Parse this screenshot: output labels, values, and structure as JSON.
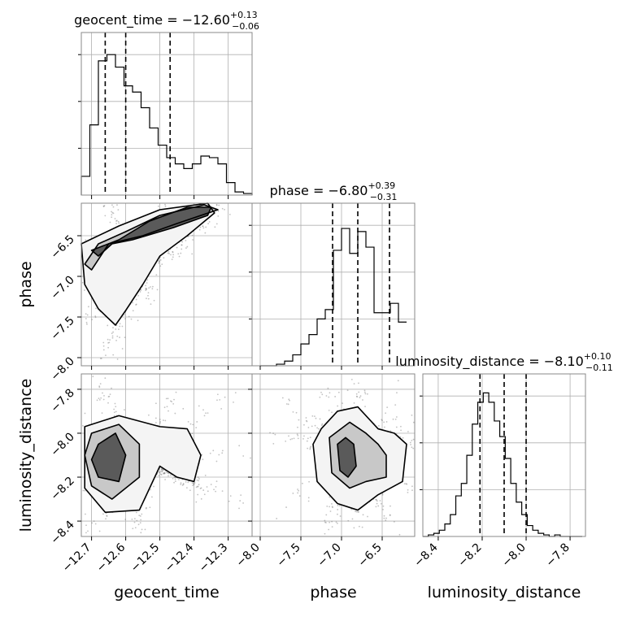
{
  "chart_data": {
    "type": "corner",
    "grid": true,
    "parameters": [
      {
        "name": "geocent_time",
        "xlabel": "geocent_time",
        "ticks": [
          -12.7,
          -12.6,
          -12.5,
          -12.4,
          -12.3
        ],
        "tick_labels": [
          "−12.7",
          "−12.6",
          "−12.5",
          "−12.4",
          "−12.3"
        ],
        "range": [
          -12.73,
          -12.23
        ]
      },
      {
        "name": "phase",
        "xlabel": "phase",
        "ylabel": "phase",
        "ticks": [
          -8.0,
          -7.5,
          -7.0,
          -6.5
        ],
        "tick_labels": [
          "−8.0",
          "−7.5",
          "−7.0",
          "−6.5"
        ],
        "range": [
          -8.1,
          -6.1
        ]
      },
      {
        "name": "luminosity_distance",
        "xlabel": "luminosity_distance",
        "ylabel": "luminosity_distance",
        "ticks": [
          -8.4,
          -8.2,
          -8.0,
          -7.8
        ],
        "tick_labels": [
          "−8.4",
          "−8.2",
          "−8.0",
          "−7.8"
        ],
        "range": [
          -8.47,
          -7.73
        ]
      }
    ],
    "marginals": [
      {
        "param": "geocent_time",
        "title_main": "geocent_time = −12.60",
        "title_sup": "+0.13",
        "title_sub": "−0.06",
        "quantiles": [
          -12.66,
          -12.6,
          -12.47
        ],
        "bin_start": -12.73,
        "bin_width": 0.025,
        "counts": [
          0.12,
          0.45,
          0.86,
          0.9,
          0.82,
          0.7,
          0.66,
          0.56,
          0.43,
          0.32,
          0.24,
          0.2,
          0.17,
          0.2,
          0.25,
          0.24,
          0.2,
          0.08,
          0.02,
          0.01,
          0.0
        ]
      },
      {
        "param": "phase",
        "title_main": "phase = −6.80",
        "title_sup": "+0.39",
        "title_sub": "−0.31",
        "quantiles": [
          -7.11,
          -6.8,
          -6.41
        ],
        "bin_start": -8.0,
        "bin_width": 0.1,
        "counts": [
          0.0,
          0.0,
          0.01,
          0.03,
          0.07,
          0.14,
          0.2,
          0.3,
          0.36,
          0.74,
          0.88,
          0.72,
          0.86,
          0.76,
          0.34,
          0.34,
          0.4,
          0.28
        ]
      },
      {
        "param": "luminosity_distance",
        "title_main": "luminosity_distance = −8.10",
        "title_sup": "+0.10",
        "title_sub": "−0.11",
        "quantiles": [
          -8.21,
          -8.1,
          -8.0
        ],
        "bin_start": -8.47,
        "bin_width": 0.025,
        "counts": [
          0.0,
          0.01,
          0.02,
          0.04,
          0.08,
          0.14,
          0.26,
          0.34,
          0.52,
          0.72,
          0.86,
          0.92,
          0.86,
          0.74,
          0.64,
          0.5,
          0.34,
          0.22,
          0.14,
          0.07,
          0.04,
          0.02,
          0.01,
          0.0,
          0.01,
          0.0,
          0.0,
          0.0,
          0.0
        ]
      }
    ],
    "contours": [
      {
        "x": "geocent_time",
        "y": "phase",
        "levels": [
          [
            [
              -12.68,
              -6.75
            ],
            [
              -12.64,
              -6.6
            ],
            [
              -12.58,
              -6.55
            ],
            [
              -12.46,
              -6.4
            ],
            [
              -12.36,
              -6.25
            ],
            [
              -12.35,
              -6.15
            ],
            [
              -12.42,
              -6.15
            ],
            [
              -12.53,
              -6.32
            ],
            [
              -12.62,
              -6.55
            ],
            [
              -12.7,
              -6.68
            ]
          ],
          [
            [
              -12.7,
              -6.92
            ],
            [
              -12.65,
              -6.6
            ],
            [
              -12.55,
              -6.5
            ],
            [
              -12.45,
              -6.35
            ],
            [
              -12.33,
              -6.18
            ],
            [
              -12.37,
              -6.12
            ],
            [
              -12.5,
              -6.25
            ],
            [
              -12.6,
              -6.45
            ],
            [
              -12.68,
              -6.6
            ],
            [
              -12.72,
              -6.85
            ]
          ],
          [
            [
              -12.72,
              -7.1
            ],
            [
              -12.68,
              -7.4
            ],
            [
              -12.63,
              -7.6
            ],
            [
              -12.6,
              -7.42
            ],
            [
              -12.55,
              -7.1
            ],
            [
              -12.5,
              -6.75
            ],
            [
              -12.42,
              -6.5
            ],
            [
              -12.34,
              -6.22
            ],
            [
              -12.36,
              -6.1
            ],
            [
              -12.5,
              -6.18
            ],
            [
              -12.62,
              -6.38
            ],
            [
              -12.73,
              -6.6
            ]
          ]
        ]
      },
      {
        "x": "geocent_time",
        "y": "luminosity_distance",
        "levels": [
          [
            [
              -12.68,
              -8.05
            ],
            [
              -12.63,
              -8.0
            ],
            [
              -12.6,
              -8.1
            ],
            [
              -12.62,
              -8.22
            ],
            [
              -12.68,
              -8.2
            ],
            [
              -12.7,
              -8.12
            ]
          ],
          [
            [
              -12.7,
              -8.0
            ],
            [
              -12.62,
              -7.96
            ],
            [
              -12.56,
              -8.05
            ],
            [
              -12.56,
              -8.2
            ],
            [
              -12.64,
              -8.3
            ],
            [
              -12.7,
              -8.24
            ],
            [
              -12.72,
              -8.1
            ]
          ],
          [
            [
              -12.72,
              -7.97
            ],
            [
              -12.62,
              -7.92
            ],
            [
              -12.5,
              -7.97
            ],
            [
              -12.42,
              -7.98
            ],
            [
              -12.38,
              -8.1
            ],
            [
              -12.4,
              -8.22
            ],
            [
              -12.45,
              -8.2
            ],
            [
              -12.5,
              -8.15
            ],
            [
              -12.56,
              -8.35
            ],
            [
              -12.66,
              -8.36
            ],
            [
              -12.72,
              -8.25
            ]
          ]
        ]
      },
      {
        "x": "phase",
        "y": "luminosity_distance",
        "levels": [
          [
            [
              -7.05,
              -8.05
            ],
            [
              -6.95,
              -8.02
            ],
            [
              -6.85,
              -8.05
            ],
            [
              -6.82,
              -8.15
            ],
            [
              -6.92,
              -8.2
            ],
            [
              -7.02,
              -8.17
            ]
          ],
          [
            [
              -7.15,
              -8.02
            ],
            [
              -6.9,
              -7.95
            ],
            [
              -6.7,
              -8.0
            ],
            [
              -6.55,
              -8.05
            ],
            [
              -6.45,
              -8.1
            ],
            [
              -6.45,
              -8.2
            ],
            [
              -6.7,
              -8.22
            ],
            [
              -6.9,
              -8.25
            ],
            [
              -7.12,
              -8.18
            ]
          ],
          [
            [
              -7.35,
              -8.05
            ],
            [
              -7.25,
              -7.98
            ],
            [
              -7.05,
              -7.9
            ],
            [
              -6.8,
              -7.88
            ],
            [
              -6.55,
              -7.98
            ],
            [
              -6.35,
              -8.0
            ],
            [
              -6.2,
              -8.05
            ],
            [
              -6.25,
              -8.22
            ],
            [
              -6.55,
              -8.28
            ],
            [
              -6.8,
              -8.35
            ],
            [
              -7.05,
              -8.32
            ],
            [
              -7.3,
              -8.22
            ]
          ]
        ]
      }
    ]
  }
}
